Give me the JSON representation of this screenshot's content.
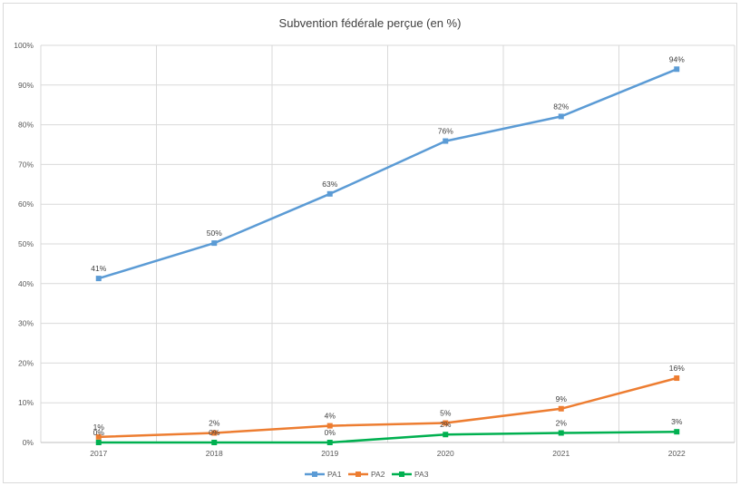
{
  "chart_data": {
    "type": "line",
    "title": "Subvention fédérale perçue (en %)",
    "xlabel": "",
    "ylabel": "",
    "categories": [
      "2017",
      "2018",
      "2019",
      "2020",
      "2021",
      "2022"
    ],
    "ylim": [
      0,
      100
    ],
    "yticks": [
      0,
      10,
      20,
      30,
      40,
      50,
      60,
      70,
      80,
      90,
      100
    ],
    "ytick_labels": [
      "0%",
      "10%",
      "20%",
      "30%",
      "40%",
      "50%",
      "60%",
      "70%",
      "80%",
      "90%",
      "100%"
    ],
    "grid": true,
    "legend_position": "bottom",
    "series": [
      {
        "name": "PA1",
        "color": "#5b9bd5",
        "values": [
          41.3,
          50.2,
          62.6,
          75.9,
          82.1,
          94.0
        ],
        "labels": [
          "41%",
          "50%",
          "63%",
          "76%",
          "82%",
          "94%"
        ]
      },
      {
        "name": "PA2",
        "color": "#ed7d31",
        "values": [
          1.4,
          2.4,
          4.2,
          4.9,
          8.5,
          16.2
        ],
        "labels": [
          "1%",
          "2%",
          "4%",
          "5%",
          "9%",
          "16%"
        ]
      },
      {
        "name": "PA3",
        "color": "#00b050",
        "values": [
          0.0,
          0.0,
          0.0,
          2.0,
          2.4,
          2.7
        ],
        "labels": [
          "0%",
          "0%",
          "0%",
          "2%",
          "2%",
          "3%"
        ]
      }
    ]
  }
}
